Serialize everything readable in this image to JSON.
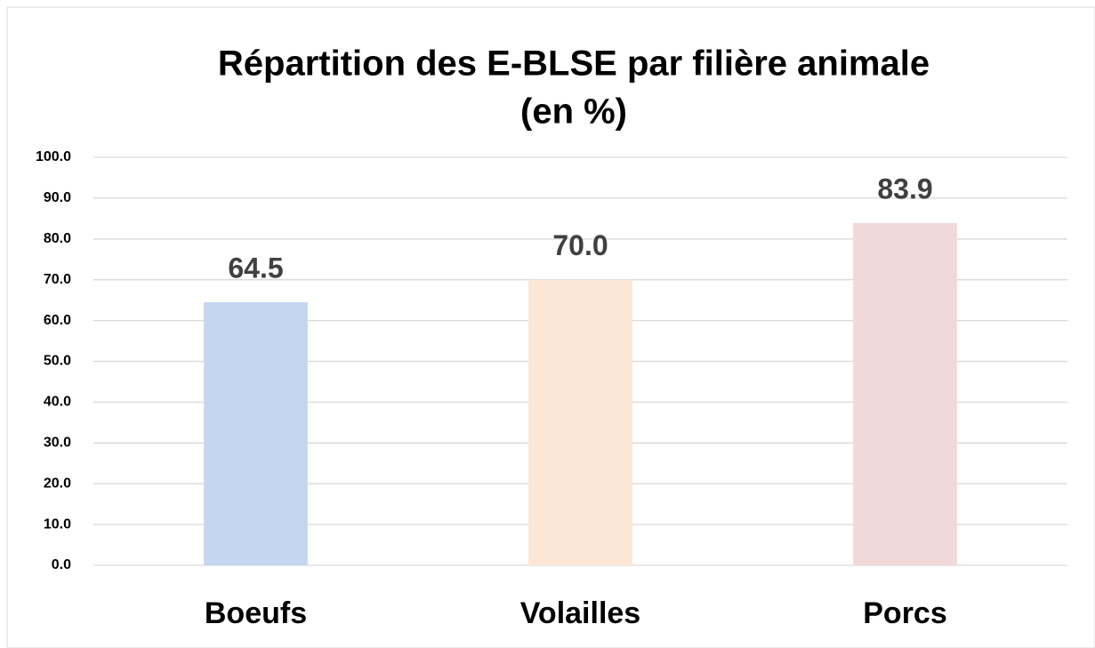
{
  "chart_data": {
    "type": "bar",
    "title": [
      "Répartition des E-BLSE par filière animale",
      "(en %)"
    ],
    "categories": [
      "Boeufs",
      "Volailles",
      "Porcs"
    ],
    "values": [
      64.5,
      70.0,
      83.9
    ],
    "value_labels": [
      "64.5",
      "70.0",
      "83.9"
    ],
    "colors": [
      "#c5d7f0",
      "#fce6d6",
      "#f2d9d9"
    ],
    "ylim": [
      0,
      100
    ],
    "yticks": [
      {
        "value": 0,
        "label": "0.0"
      },
      {
        "value": 10,
        "label": "10.0"
      },
      {
        "value": 20,
        "label": "20.0"
      },
      {
        "value": 30,
        "label": "30.0"
      },
      {
        "value": 40,
        "label": "40.0"
      },
      {
        "value": 50,
        "label": "50.0"
      },
      {
        "value": 60,
        "label": "60.0"
      },
      {
        "value": 70,
        "label": "70.0"
      },
      {
        "value": 80,
        "label": "80.0"
      },
      {
        "value": 90,
        "label": "90.0"
      },
      {
        "value": 100,
        "label": "100.0"
      }
    ],
    "grid": true
  }
}
